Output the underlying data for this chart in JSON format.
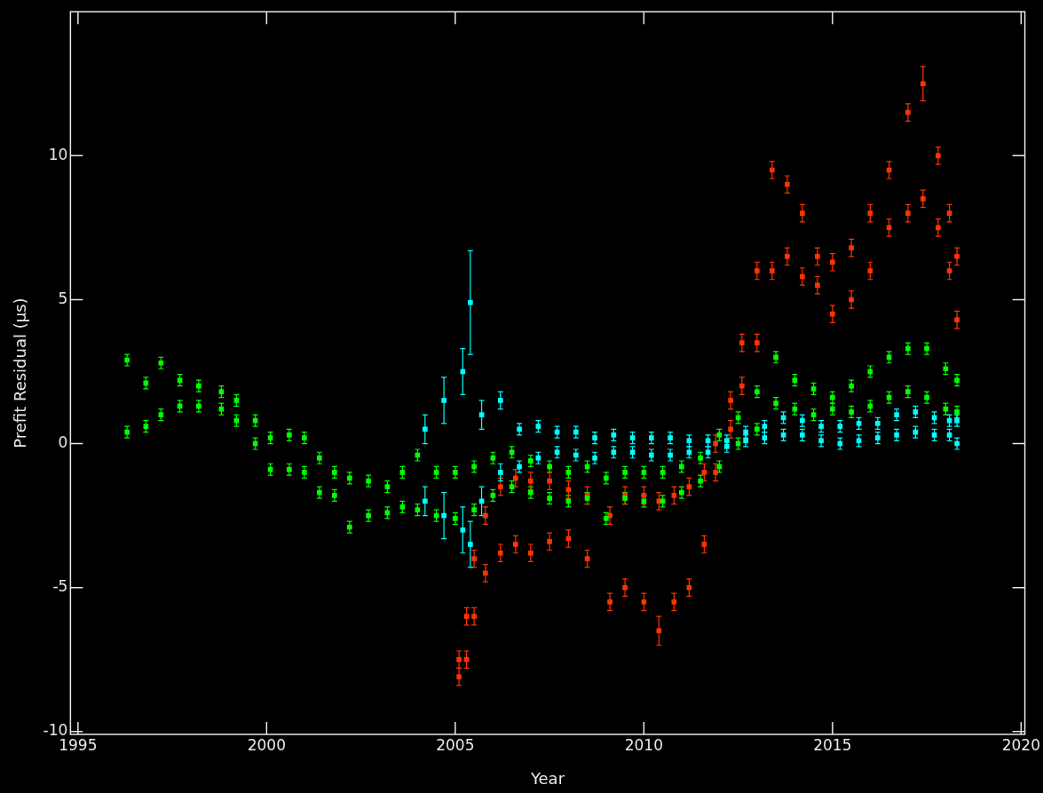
{
  "chart_data": {
    "type": "scatter",
    "xlabel": "Year",
    "ylabel": "Prefit Residual (μs)",
    "xlim": [
      1994.8,
      2020.1
    ],
    "xticks": [
      1995,
      2000,
      2005,
      2010,
      2015,
      2020
    ],
    "ylim": [
      -10.1,
      15
    ],
    "yticks": [
      -10,
      -5,
      0,
      5,
      10
    ],
    "grid": false,
    "legend": false,
    "marker": "square",
    "series": [
      {
        "color": "#00ff00",
        "x": [
          1996.3,
          1996.3,
          1996.8,
          1996.8,
          1997.2,
          1997.2,
          1997.7,
          1997.7,
          1998.2,
          1998.2,
          1998.8,
          1998.8,
          1999.2,
          1999.2,
          1999.7,
          1999.7,
          2000.1,
          2000.1,
          2000.6,
          2000.6,
          2001.0,
          2001.0,
          2001.4,
          2001.4,
          2001.8,
          2001.8,
          2002.2,
          2002.2,
          2002.7,
          2002.7,
          2003.2,
          2003.2,
          2003.6,
          2003.6,
          2004.0,
          2004.0,
          2004.5,
          2004.5,
          2005.0,
          2005.0,
          2005.5,
          2005.5,
          2006.0,
          2006.0,
          2006.5,
          2006.5,
          2007.0,
          2007.0,
          2007.5,
          2007.5,
          2008.0,
          2008.0,
          2008.5,
          2008.5,
          2009.0,
          2009.0,
          2009.5,
          2009.5,
          2010.0,
          2010.0,
          2010.5,
          2010.5,
          2011.0,
          2011.0,
          2011.5,
          2011.5,
          2012.0,
          2012.0,
          2012.5,
          2012.5,
          2013.0,
          2013.0,
          2013.5,
          2013.5,
          2014.0,
          2014.0,
          2014.5,
          2014.5,
          2015.0,
          2015.0,
          2015.5,
          2015.5,
          2016.0,
          2016.0,
          2016.5,
          2016.5,
          2017.0,
          2017.0,
          2017.5,
          2017.5,
          2018.0,
          2018.0,
          2018.3,
          2018.3
        ],
        "values": [
          0.4,
          2.9,
          0.6,
          2.1,
          1.0,
          2.8,
          1.3,
          2.2,
          1.3,
          2.0,
          1.2,
          1.8,
          0.8,
          1.5,
          0.0,
          0.8,
          -0.9,
          0.2,
          -0.9,
          0.3,
          -1.0,
          0.2,
          -1.7,
          -0.5,
          -1.8,
          -1.0,
          -2.9,
          -1.2,
          -2.5,
          -1.3,
          -2.4,
          -1.5,
          -2.2,
          -1.0,
          -2.3,
          -0.4,
          -2.5,
          -1.0,
          -2.6,
          -1.0,
          -2.3,
          -0.8,
          -1.8,
          -0.5,
          -1.5,
          -0.3,
          -1.7,
          -0.6,
          -1.9,
          -0.8,
          -2.0,
          -1.0,
          -1.9,
          -0.8,
          -2.6,
          -1.2,
          -1.9,
          -1.0,
          -2.0,
          -1.0,
          -2.0,
          -1.0,
          -1.7,
          -0.8,
          -1.3,
          -0.5,
          -0.8,
          0.3,
          0.0,
          0.9,
          0.5,
          1.8,
          1.4,
          3.0,
          1.2,
          2.2,
          1.0,
          1.9,
          1.2,
          1.6,
          1.1,
          2.0,
          1.3,
          2.5,
          1.6,
          3.0,
          1.8,
          3.3,
          1.6,
          3.3,
          1.2,
          2.6,
          1.1,
          2.2
        ],
        "errors": [
          0.2,
          0.2,
          0.2,
          0.2,
          0.2,
          0.2,
          0.2,
          0.2,
          0.2,
          0.2,
          0.2,
          0.2,
          0.2,
          0.2,
          0.2,
          0.2,
          0.2,
          0.2,
          0.2,
          0.2,
          0.2,
          0.2,
          0.2,
          0.2,
          0.2,
          0.2,
          0.2,
          0.2,
          0.2,
          0.2,
          0.2,
          0.2,
          0.2,
          0.2,
          0.2,
          0.2,
          0.2,
          0.2,
          0.2,
          0.2,
          0.2,
          0.2,
          0.2,
          0.2,
          0.2,
          0.2,
          0.2,
          0.2,
          0.2,
          0.2,
          0.2,
          0.2,
          0.2,
          0.2,
          0.2,
          0.2,
          0.2,
          0.2,
          0.2,
          0.2,
          0.2,
          0.2,
          0.2,
          0.2,
          0.2,
          0.2,
          0.2,
          0.2,
          0.2,
          0.2,
          0.2,
          0.2,
          0.2,
          0.2,
          0.2,
          0.2,
          0.2,
          0.2,
          0.2,
          0.2,
          0.2,
          0.2,
          0.2,
          0.2,
          0.2,
          0.2,
          0.2,
          0.2,
          0.2,
          0.2,
          0.2,
          0.2,
          0.2,
          0.2
        ]
      },
      {
        "color": "#ff3300",
        "x": [
          2005.1,
          2005.1,
          2005.3,
          2005.3,
          2005.5,
          2005.5,
          2005.8,
          2005.8,
          2006.2,
          2006.2,
          2006.6,
          2006.6,
          2007.0,
          2007.0,
          2007.5,
          2007.5,
          2008.0,
          2008.0,
          2008.5,
          2008.5,
          2009.1,
          2009.1,
          2009.5,
          2009.5,
          2010.0,
          2010.0,
          2010.4,
          2010.4,
          2010.8,
          2010.8,
          2011.2,
          2011.2,
          2011.6,
          2011.6,
          2011.9,
          2011.9,
          2012.3,
          2012.3,
          2012.6,
          2012.6,
          2013.0,
          2013.0,
          2013.4,
          2013.4,
          2013.8,
          2013.8,
          2014.2,
          2014.2,
          2014.6,
          2014.6,
          2015.0,
          2015.0,
          2015.5,
          2015.5,
          2016.0,
          2016.0,
          2016.5,
          2016.5,
          2017.0,
          2017.0,
          2017.4,
          2017.4,
          2017.8,
          2017.8,
          2018.1,
          2018.1,
          2018.3,
          2018.3
        ],
        "values": [
          -8.1,
          -7.5,
          -7.5,
          -6.0,
          -6.0,
          -4.0,
          -4.5,
          -2.5,
          -3.8,
          -1.5,
          -3.5,
          -1.2,
          -3.8,
          -1.3,
          -3.4,
          -1.3,
          -3.3,
          -1.6,
          -4.0,
          -1.8,
          -5.5,
          -2.5,
          -5.0,
          -1.8,
          -5.5,
          -1.8,
          -6.5,
          -2.0,
          -5.5,
          -1.8,
          -5.0,
          -1.5,
          -3.5,
          -1.0,
          -1.0,
          0.0,
          0.5,
          1.5,
          2.0,
          3.5,
          3.5,
          6.0,
          6.0,
          9.5,
          6.5,
          9.0,
          5.8,
          8.0,
          5.5,
          6.5,
          4.5,
          6.3,
          5.0,
          6.8,
          6.0,
          8.0,
          7.5,
          9.5,
          8.0,
          11.5,
          8.5,
          12.5,
          7.5,
          10.0,
          6.0,
          8.0,
          4.3,
          6.5
        ],
        "errors": [
          0.3,
          0.3,
          0.3,
          0.3,
          0.3,
          0.3,
          0.3,
          0.3,
          0.3,
          0.3,
          0.3,
          0.3,
          0.3,
          0.3,
          0.3,
          0.3,
          0.3,
          0.3,
          0.3,
          0.3,
          0.3,
          0.3,
          0.3,
          0.3,
          0.3,
          0.3,
          0.5,
          0.3,
          0.3,
          0.3,
          0.3,
          0.3,
          0.3,
          0.3,
          0.3,
          0.3,
          0.3,
          0.3,
          0.3,
          0.3,
          0.3,
          0.3,
          0.3,
          0.3,
          0.3,
          0.3,
          0.3,
          0.3,
          0.3,
          0.3,
          0.3,
          0.3,
          0.3,
          0.3,
          0.3,
          0.3,
          0.3,
          0.3,
          0.3,
          0.3,
          0.3,
          0.6,
          0.3,
          0.3,
          0.3,
          0.3,
          0.3,
          0.3
        ]
      },
      {
        "color": "#00ffff",
        "x": [
          2004.2,
          2004.2,
          2004.7,
          2004.7,
          2005.2,
          2005.2,
          2005.4,
          2005.4,
          2005.7,
          2005.7,
          2006.2,
          2006.2,
          2006.7,
          2006.7,
          2007.2,
          2007.2,
          2007.7,
          2007.7,
          2008.2,
          2008.2,
          2008.7,
          2008.7,
          2009.2,
          2009.2,
          2009.7,
          2009.7,
          2010.2,
          2010.2,
          2010.7,
          2010.7,
          2011.2,
          2011.2,
          2011.7,
          2011.7,
          2012.2,
          2012.2,
          2012.7,
          2012.7,
          2013.2,
          2013.2,
          2013.7,
          2013.7,
          2014.2,
          2014.2,
          2014.7,
          2014.7,
          2015.2,
          2015.2,
          2015.7,
          2015.7,
          2016.2,
          2016.2,
          2016.7,
          2016.7,
          2017.2,
          2017.2,
          2017.7,
          2017.7,
          2018.1,
          2018.1,
          2018.3,
          2018.3
        ],
        "values": [
          -2.0,
          0.5,
          -2.5,
          1.5,
          -3.0,
          2.5,
          -3.5,
          4.9,
          -2.0,
          1.0,
          -1.0,
          1.5,
          -0.8,
          0.5,
          -0.5,
          0.6,
          -0.3,
          0.4,
          -0.4,
          0.4,
          -0.5,
          0.2,
          -0.3,
          0.3,
          -0.3,
          0.2,
          -0.4,
          0.2,
          -0.4,
          0.2,
          -0.3,
          0.1,
          -0.3,
          0.1,
          -0.1,
          0.1,
          0.1,
          0.4,
          0.2,
          0.6,
          0.3,
          0.9,
          0.3,
          0.8,
          0.1,
          0.6,
          0.0,
          0.6,
          0.1,
          0.7,
          0.2,
          0.7,
          0.3,
          1.0,
          0.4,
          1.1,
          0.3,
          0.9,
          0.3,
          0.8,
          0.0,
          0.8
        ],
        "errors": [
          0.5,
          0.5,
          0.8,
          0.8,
          0.8,
          0.8,
          0.8,
          1.8,
          0.5,
          0.5,
          0.3,
          0.3,
          0.2,
          0.2,
          0.2,
          0.2,
          0.2,
          0.2,
          0.2,
          0.2,
          0.2,
          0.2,
          0.2,
          0.2,
          0.2,
          0.2,
          0.2,
          0.2,
          0.2,
          0.2,
          0.2,
          0.2,
          0.2,
          0.2,
          0.2,
          0.2,
          0.2,
          0.2,
          0.2,
          0.2,
          0.2,
          0.2,
          0.2,
          0.2,
          0.2,
          0.2,
          0.2,
          0.2,
          0.2,
          0.2,
          0.2,
          0.2,
          0.2,
          0.2,
          0.2,
          0.2,
          0.2,
          0.2,
          0.2,
          0.2,
          0.2,
          0.2
        ]
      }
    ]
  }
}
